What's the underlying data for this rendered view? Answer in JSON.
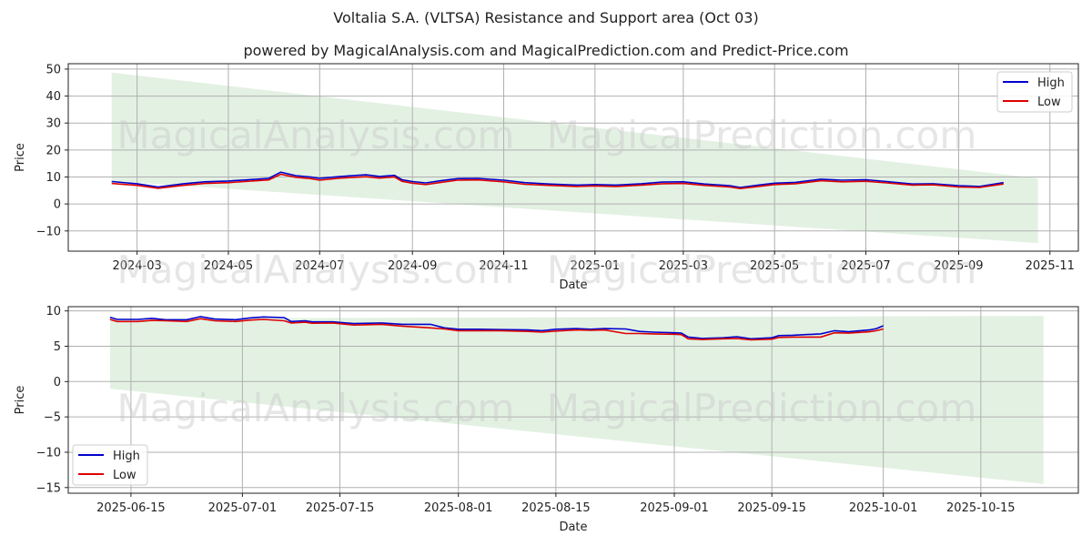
{
  "title": "Voltalia S.A. (VLTSA) Resistance and Support area (Oct 03)",
  "subtitle": "powered by MagicalAnalysis.com and MagicalPrediction.com and Predict-Price.com",
  "watermark": [
    "MagicalAnalysis.com",
    "MagicalPrediction.com"
  ],
  "colors": {
    "high": "#0000cc",
    "low": "#dd0000",
    "band": "#d9ecd9",
    "grid": "#b0b0b0"
  },
  "chart_data": [
    {
      "type": "line",
      "xlabel": "Date",
      "ylabel": "Price",
      "xlim": [
        "2024-01-15",
        "2025-11-20"
      ],
      "ylim": [
        -17.5,
        52
      ],
      "x_ticks": [
        "2024-03",
        "2024-05",
        "2024-07",
        "2024-09",
        "2024-11",
        "2025-01",
        "2025-03",
        "2025-05",
        "2025-07",
        "2025-09",
        "2025-11"
      ],
      "x_tick_dates": [
        "2024-03-01",
        "2024-05-01",
        "2024-07-01",
        "2024-09-01",
        "2024-11-01",
        "2025-01-01",
        "2025-03-01",
        "2025-05-01",
        "2025-07-01",
        "2025-09-01",
        "2025-11-01"
      ],
      "y_ticks": [
        -10,
        0,
        10,
        20,
        30,
        40,
        50
      ],
      "y_tick_labels": [
        "−10",
        "0",
        "10",
        "20",
        "30",
        "40",
        "50"
      ],
      "legend": {
        "position": "top-right",
        "entries": [
          "High",
          "Low"
        ]
      },
      "grid": true,
      "band": {
        "x": [
          "2024-02-13",
          "2025-10-24"
        ],
        "upper": [
          48.7,
          9.5
        ],
        "lower": [
          8.5,
          -14.5
        ]
      },
      "series": [
        {
          "name": "High",
          "x": [
            "2024-02-13",
            "2024-03-01",
            "2024-03-15",
            "2024-04-01",
            "2024-04-15",
            "2024-05-01",
            "2024-05-20",
            "2024-05-28",
            "2024-06-05",
            "2024-06-15",
            "2024-06-25",
            "2024-07-01",
            "2024-07-15",
            "2024-08-01",
            "2024-08-10",
            "2024-08-20",
            "2024-08-25",
            "2024-09-01",
            "2024-09-10",
            "2024-09-20",
            "2024-10-01",
            "2024-10-15",
            "2024-11-01",
            "2024-11-15",
            "2024-12-01",
            "2024-12-20",
            "2025-01-01",
            "2025-01-15",
            "2025-02-01",
            "2025-02-15",
            "2025-03-01",
            "2025-03-15",
            "2025-04-01",
            "2025-04-08",
            "2025-04-20",
            "2025-05-01",
            "2025-05-15",
            "2025-06-01",
            "2025-06-15",
            "2025-07-01",
            "2025-07-15",
            "2025-08-01",
            "2025-08-15",
            "2025-09-01",
            "2025-09-15",
            "2025-10-01"
          ],
          "values": [
            8.3,
            7.5,
            6.3,
            7.5,
            8.2,
            8.5,
            9.2,
            9.5,
            11.8,
            10.5,
            10.0,
            9.5,
            10.2,
            10.8,
            10.2,
            10.6,
            9.0,
            8.3,
            7.8,
            8.6,
            9.4,
            9.5,
            8.8,
            7.9,
            7.4,
            7.0,
            7.2,
            7.0,
            7.5,
            8.1,
            8.2,
            7.4,
            6.8,
            6.1,
            7.0,
            7.7,
            8.0,
            9.2,
            8.8,
            9.0,
            8.3,
            7.4,
            7.5,
            6.8,
            6.5,
            7.9
          ]
        },
        {
          "name": "Low",
          "x": [
            "2024-02-13",
            "2024-03-01",
            "2024-03-15",
            "2024-04-01",
            "2024-04-15",
            "2024-05-01",
            "2024-05-20",
            "2024-05-28",
            "2024-06-05",
            "2024-06-15",
            "2024-06-25",
            "2024-07-01",
            "2024-07-15",
            "2024-08-01",
            "2024-08-10",
            "2024-08-20",
            "2024-08-25",
            "2024-09-01",
            "2024-09-10",
            "2024-09-20",
            "2024-10-01",
            "2024-10-15",
            "2024-11-01",
            "2024-11-15",
            "2024-12-01",
            "2024-12-20",
            "2025-01-01",
            "2025-01-15",
            "2025-02-01",
            "2025-02-15",
            "2025-03-01",
            "2025-03-15",
            "2025-04-01",
            "2025-04-08",
            "2025-04-20",
            "2025-05-01",
            "2025-05-15",
            "2025-06-01",
            "2025-06-15",
            "2025-07-01",
            "2025-07-15",
            "2025-08-01",
            "2025-08-15",
            "2025-09-01",
            "2025-09-15",
            "2025-10-01"
          ],
          "values": [
            7.6,
            6.9,
            5.8,
            6.9,
            7.6,
            7.9,
            8.6,
            8.9,
            11.0,
            9.9,
            9.4,
            8.8,
            9.6,
            10.1,
            9.6,
            10.0,
            8.4,
            7.7,
            7.2,
            8.0,
            8.8,
            8.9,
            8.2,
            7.3,
            6.9,
            6.5,
            6.7,
            6.5,
            7.0,
            7.5,
            7.6,
            6.9,
            6.3,
            5.7,
            6.5,
            7.2,
            7.5,
            8.6,
            8.2,
            8.4,
            7.8,
            7.0,
            7.1,
            6.3,
            6.1,
            7.4
          ]
        }
      ]
    },
    {
      "type": "line",
      "xlabel": "Date",
      "ylabel": "Price",
      "xlim": [
        "2025-06-06",
        "2025-10-29"
      ],
      "ylim": [
        -15.8,
        10.6
      ],
      "x_ticks": [
        "2025-06-15",
        "2025-07-01",
        "2025-07-15",
        "2025-08-01",
        "2025-08-15",
        "2025-09-01",
        "2025-09-15",
        "2025-10-01",
        "2025-10-15"
      ],
      "y_ticks": [
        -15,
        -10,
        -5,
        0,
        5,
        10
      ],
      "y_tick_labels": [
        "−15",
        "−10",
        "−5",
        "0",
        "5",
        "10"
      ],
      "legend": {
        "position": "bottom-left",
        "entries": [
          "High",
          "Low"
        ]
      },
      "grid": true,
      "band": {
        "x": [
          "2025-06-12",
          "2025-10-24"
        ],
        "upper": [
          8.9,
          9.3
        ],
        "lower": [
          -1.0,
          -14.5
        ]
      },
      "series": [
        {
          "name": "High",
          "x": [
            "2025-06-12",
            "2025-06-13",
            "2025-06-16",
            "2025-06-18",
            "2025-06-20",
            "2025-06-23",
            "2025-06-25",
            "2025-06-27",
            "2025-06-30",
            "2025-07-02",
            "2025-07-04",
            "2025-07-07",
            "2025-07-08",
            "2025-07-10",
            "2025-07-11",
            "2025-07-14",
            "2025-07-17",
            "2025-07-21",
            "2025-07-24",
            "2025-07-28",
            "2025-07-30",
            "2025-08-01",
            "2025-08-04",
            "2025-08-07",
            "2025-08-11",
            "2025-08-13",
            "2025-08-15",
            "2025-08-18",
            "2025-08-20",
            "2025-08-22",
            "2025-08-25",
            "2025-08-27",
            "2025-08-29",
            "2025-09-01",
            "2025-09-02",
            "2025-09-03",
            "2025-09-05",
            "2025-09-08",
            "2025-09-10",
            "2025-09-12",
            "2025-09-15",
            "2025-09-16",
            "2025-09-18",
            "2025-09-22",
            "2025-09-24",
            "2025-09-26",
            "2025-09-29",
            "2025-09-30",
            "2025-10-01"
          ],
          "values": [
            9.1,
            8.8,
            8.8,
            8.95,
            8.75,
            8.75,
            9.2,
            8.85,
            8.75,
            9.0,
            9.15,
            9.05,
            8.5,
            8.6,
            8.45,
            8.45,
            8.2,
            8.3,
            8.1,
            8.1,
            7.6,
            7.4,
            7.4,
            7.35,
            7.3,
            7.2,
            7.4,
            7.5,
            7.4,
            7.5,
            7.45,
            7.1,
            7.0,
            6.9,
            6.85,
            6.3,
            6.1,
            6.2,
            6.35,
            6.05,
            6.2,
            6.5,
            6.55,
            6.75,
            7.2,
            7.05,
            7.3,
            7.5,
            7.9
          ]
        },
        {
          "name": "Low",
          "x": [
            "2025-06-12",
            "2025-06-13",
            "2025-06-16",
            "2025-06-18",
            "2025-06-20",
            "2025-06-23",
            "2025-06-25",
            "2025-06-27",
            "2025-06-30",
            "2025-07-02",
            "2025-07-04",
            "2025-07-07",
            "2025-07-08",
            "2025-07-10",
            "2025-07-11",
            "2025-07-14",
            "2025-07-17",
            "2025-07-21",
            "2025-07-24",
            "2025-07-28",
            "2025-07-30",
            "2025-08-01",
            "2025-08-04",
            "2025-08-07",
            "2025-08-11",
            "2025-08-13",
            "2025-08-15",
            "2025-08-18",
            "2025-08-20",
            "2025-08-22",
            "2025-08-25",
            "2025-08-27",
            "2025-08-29",
            "2025-09-01",
            "2025-09-02",
            "2025-09-03",
            "2025-09-05",
            "2025-09-08",
            "2025-09-10",
            "2025-09-12",
            "2025-09-15",
            "2025-09-16",
            "2025-09-18",
            "2025-09-22",
            "2025-09-24",
            "2025-09-26",
            "2025-09-29",
            "2025-09-30",
            "2025-10-01"
          ],
          "values": [
            8.8,
            8.5,
            8.5,
            8.65,
            8.6,
            8.5,
            8.9,
            8.6,
            8.5,
            8.7,
            8.8,
            8.6,
            8.3,
            8.4,
            8.25,
            8.3,
            8.0,
            8.1,
            7.85,
            7.6,
            7.45,
            7.2,
            7.2,
            7.2,
            7.1,
            7.0,
            7.15,
            7.3,
            7.25,
            7.3,
            6.8,
            6.8,
            6.75,
            6.7,
            6.65,
            6.05,
            5.95,
            6.05,
            6.1,
            5.9,
            6.0,
            6.25,
            6.3,
            6.3,
            6.9,
            6.85,
            7.05,
            7.2,
            7.45
          ]
        }
      ]
    }
  ]
}
